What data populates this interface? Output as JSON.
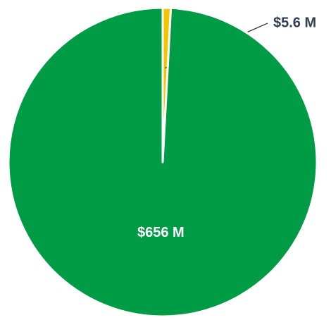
{
  "chart_data": {
    "type": "pie",
    "categories": [
      null,
      null
    ],
    "values": [
      5.6,
      656
    ],
    "value_labels": [
      "$5.6 M",
      "$656 M"
    ],
    "colors": [
      "#f2c500",
      "#009b45"
    ]
  }
}
